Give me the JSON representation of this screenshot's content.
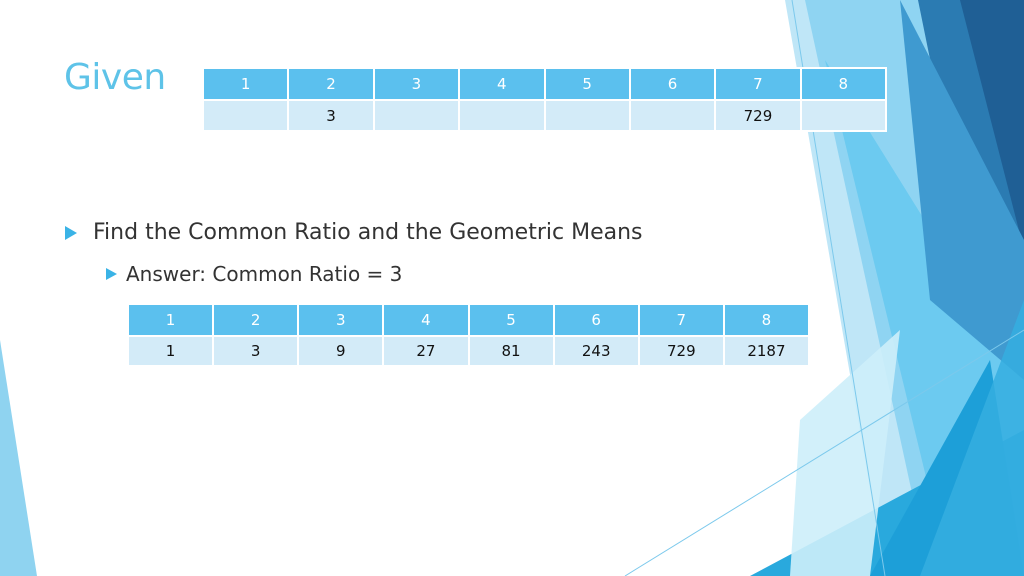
{
  "slide": {
    "title": "Given",
    "given_table": {
      "headers": [
        "1",
        "2",
        "3",
        "4",
        "5",
        "6",
        "7",
        "8"
      ],
      "values": [
        "",
        "3",
        "",
        "",
        "",
        "",
        "729",
        ""
      ]
    },
    "bullets": [
      "Find the Common Ratio and the Geometric Means",
      "Answer: Common Ratio = 3"
    ],
    "answer_table": {
      "headers": [
        "1",
        "2",
        "3",
        "4",
        "5",
        "6",
        "7",
        "8"
      ],
      "values": [
        "1",
        "3",
        "9",
        "27",
        "81",
        "243",
        "729",
        "2187"
      ]
    }
  },
  "theme": {
    "accent": "#5bc0ee",
    "title_color": "#5ec3e8",
    "cell_fill": "#d3ebf8"
  }
}
